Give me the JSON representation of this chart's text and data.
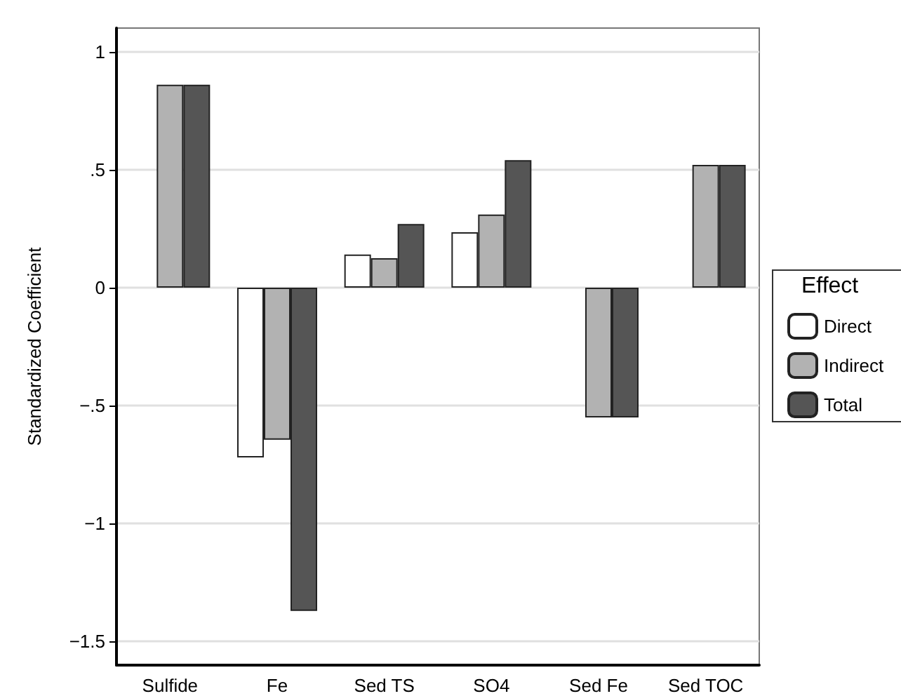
{
  "chart_data": {
    "type": "bar",
    "ylabel": "Standardized Coefficient",
    "legend_title": "Effect",
    "categories": [
      "Sulfide",
      "Fe",
      "Sed TS",
      "SO4",
      "Sed Fe",
      "Sed TOC"
    ],
    "series": [
      {
        "name": "Direct",
        "color": "#ffffff",
        "values": [
          null,
          -0.72,
          0.14,
          0.235,
          null,
          null
        ]
      },
      {
        "name": "Indirect",
        "color": "#b2b2b2",
        "values": [
          0.86,
          -0.645,
          0.125,
          0.31,
          -0.55,
          0.52
        ]
      },
      {
        "name": "Total",
        "color": "#555555",
        "values": [
          0.86,
          -1.37,
          0.27,
          0.54,
          -0.55,
          0.52
        ]
      }
    ],
    "ylim": [
      -1.6,
      1.1
    ],
    "yticks": [
      {
        "value": -1.5,
        "label": "−1.5"
      },
      {
        "value": -1,
        "label": "−1"
      },
      {
        "value": -0.5,
        "label": "−.5"
      },
      0,
      {
        "value": 0.5,
        "label": ".5"
      },
      1
    ],
    "grid": "y",
    "legend": "right"
  }
}
